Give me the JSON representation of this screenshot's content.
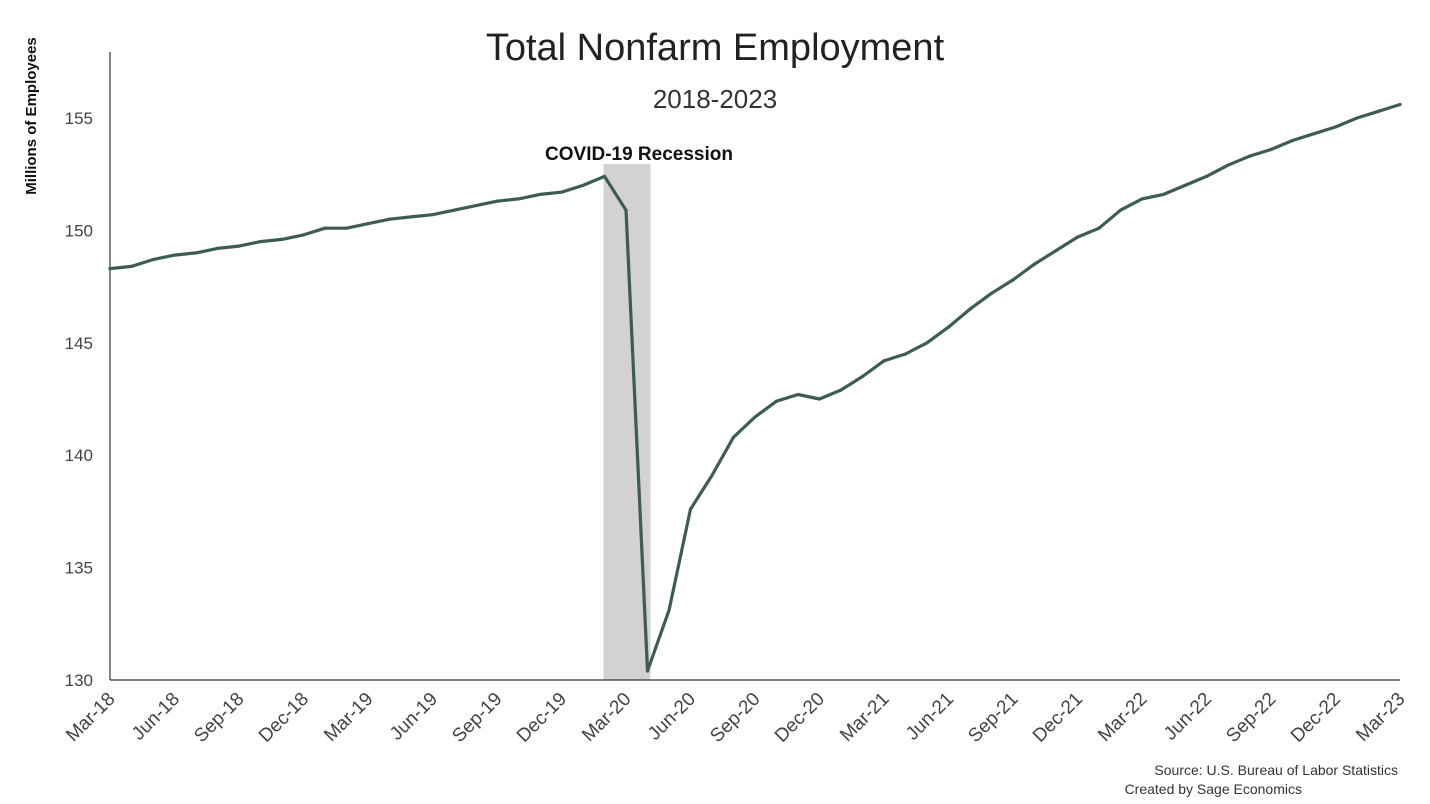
{
  "chart_data": {
    "type": "line",
    "title": "Total Nonfarm Employment",
    "subtitle": "2018-2023",
    "ylabel": "Millions of Employees",
    "xlabel": "",
    "ylim": [
      130,
      157
    ],
    "yticks": [
      130,
      135,
      140,
      145,
      150,
      155
    ],
    "grid": false,
    "legend": "none",
    "line_color": "#3d5c52",
    "shade_color": "#d3d1d1",
    "x_tick_labels": [
      "Mar-18",
      "Jun-18",
      "Sep-18",
      "Dec-18",
      "Mar-19",
      "Jun-19",
      "Sep-19",
      "Dec-19",
      "Mar-20",
      "Jun-20",
      "Sep-20",
      "Dec-20",
      "Mar-21",
      "Jun-21",
      "Sep-21",
      "Dec-21",
      "Mar-22",
      "Jun-22",
      "Sep-22",
      "Dec-22",
      "Mar-23"
    ],
    "x": [
      "2018-03",
      "2018-04",
      "2018-05",
      "2018-06",
      "2018-07",
      "2018-08",
      "2018-09",
      "2018-10",
      "2018-11",
      "2018-12",
      "2019-01",
      "2019-02",
      "2019-03",
      "2019-04",
      "2019-05",
      "2019-06",
      "2019-07",
      "2019-08",
      "2019-09",
      "2019-10",
      "2019-11",
      "2019-12",
      "2020-01",
      "2020-02",
      "2020-03",
      "2020-04",
      "2020-05",
      "2020-06",
      "2020-07",
      "2020-08",
      "2020-09",
      "2020-10",
      "2020-11",
      "2020-12",
      "2021-01",
      "2021-02",
      "2021-03",
      "2021-04",
      "2021-05",
      "2021-06",
      "2021-07",
      "2021-08",
      "2021-09",
      "2021-10",
      "2021-11",
      "2021-12",
      "2022-01",
      "2022-02",
      "2022-03",
      "2022-04",
      "2022-05",
      "2022-06",
      "2022-07",
      "2022-08",
      "2022-09",
      "2022-10",
      "2022-11",
      "2022-12",
      "2023-01",
      "2023-02",
      "2023-03"
    ],
    "series": [
      {
        "values": [
          148.3,
          148.4,
          148.7,
          148.9,
          149.0,
          149.2,
          149.3,
          149.5,
          149.6,
          149.8,
          150.1,
          150.1,
          150.3,
          150.5,
          150.6,
          150.7,
          150.9,
          151.1,
          151.3,
          151.4,
          151.6,
          151.7,
          152.0,
          152.4,
          150.9,
          130.4,
          133.1,
          137.6,
          139.1,
          140.8,
          141.7,
          142.4,
          142.7,
          142.5,
          142.9,
          143.5,
          144.2,
          144.5,
          145.0,
          145.7,
          146.5,
          147.2,
          147.8,
          148.5,
          149.1,
          149.7,
          150.1,
          150.9,
          151.4,
          151.6,
          152.0,
          152.4,
          152.9,
          153.3,
          153.6,
          154.0,
          154.3,
          154.6,
          155.0,
          155.3,
          155.6
        ]
      }
    ],
    "annotations": [
      {
        "label": "COVID-19 Recession",
        "x_start": "2020-02",
        "x_end": "2020-04"
      }
    ]
  },
  "source": {
    "line1": "Source: U.S. Bureau of Labor Statistics",
    "line2": "Created by Sage Economics"
  }
}
